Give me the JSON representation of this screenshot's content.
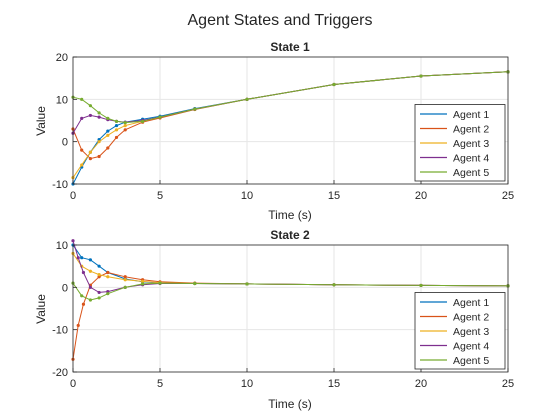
{
  "figure": {
    "title": "Agent States and Triggers"
  },
  "colors": [
    "#0072BD",
    "#D95319",
    "#EDB120",
    "#7E2F8E",
    "#77AC30"
  ],
  "chart_data": [
    {
      "type": "line",
      "title": "State 1",
      "xlabel": "Time (s)",
      "ylabel": "Value",
      "xlim": [
        0,
        25
      ],
      "ylim": [
        -10,
        20
      ],
      "xticks": [
        0,
        5,
        10,
        15,
        20,
        25
      ],
      "yticks": [
        -10,
        0,
        10,
        20
      ],
      "grid": true,
      "legend_position": "bottom-right",
      "series": [
        {
          "name": "Agent 1",
          "x": [
            0,
            0.5,
            1,
            1.5,
            2,
            2.5,
            3,
            4,
            5,
            7,
            10,
            15,
            20,
            25
          ],
          "y": [
            -10,
            -6,
            -2.5,
            0.5,
            2.5,
            3.8,
            4.6,
            5.3,
            6,
            7.8,
            10,
            13.5,
            15.5,
            16.5
          ]
        },
        {
          "name": "Agent 2",
          "x": [
            0,
            0.5,
            1,
            1.5,
            2,
            2.5,
            3,
            4,
            5,
            7,
            10,
            15,
            20,
            25
          ],
          "y": [
            3,
            -2,
            -4,
            -3.5,
            -1.5,
            1,
            2.8,
            4.6,
            5.6,
            7.6,
            10,
            13.5,
            15.5,
            16.5
          ]
        },
        {
          "name": "Agent 3",
          "x": [
            0,
            0.5,
            1,
            1.5,
            2,
            2.5,
            3,
            4,
            5,
            7,
            10,
            15,
            20,
            25
          ],
          "y": [
            -8.5,
            -5.5,
            -2.5,
            0,
            1.5,
            2.8,
            3.8,
            4.8,
            5.8,
            7.7,
            10,
            13.5,
            15.5,
            16.5
          ]
        },
        {
          "name": "Agent 4",
          "x": [
            0,
            0.5,
            1,
            1.5,
            2,
            2.5,
            3,
            4,
            5,
            7,
            10,
            15,
            20,
            25
          ],
          "y": [
            2,
            5.5,
            6.2,
            5.8,
            5.2,
            4.8,
            4.6,
            5,
            5.8,
            7.7,
            10,
            13.5,
            15.5,
            16.5
          ]
        },
        {
          "name": "Agent 5",
          "x": [
            0,
            0.5,
            1,
            1.5,
            2,
            2.5,
            3,
            4,
            5,
            7,
            10,
            15,
            20,
            25
          ],
          "y": [
            10.5,
            10,
            8.5,
            6.8,
            5.5,
            4.8,
            4.5,
            4.8,
            5.8,
            7.7,
            10,
            13.5,
            15.5,
            16.5
          ]
        }
      ]
    },
    {
      "type": "line",
      "title": "State 2",
      "xlabel": "Time (s)",
      "ylabel": "Value",
      "xlim": [
        0,
        25
      ],
      "ylim": [
        -20,
        10
      ],
      "xticks": [
        0,
        5,
        10,
        15,
        20,
        25
      ],
      "yticks": [
        -20,
        -10,
        0,
        10
      ],
      "grid": true,
      "legend_position": "bottom-right",
      "series": [
        {
          "name": "Agent 1",
          "x": [
            0,
            0.5,
            1,
            1.5,
            2,
            3,
            4,
            5,
            7,
            10,
            15,
            20,
            25
          ],
          "y": [
            10,
            7,
            6.5,
            5,
            3.5,
            2,
            1.3,
            1,
            0.9,
            0.8,
            0.6,
            0.45,
            0.35
          ]
        },
        {
          "name": "Agent 2",
          "x": [
            0,
            0.3,
            0.6,
            1,
            1.5,
            2,
            3,
            4,
            5,
            7,
            10,
            15,
            20,
            25
          ],
          "y": [
            -17,
            -9,
            -4,
            0.5,
            2.5,
            3.5,
            2.5,
            1.8,
            1.3,
            1,
            0.8,
            0.6,
            0.45,
            0.35
          ]
        },
        {
          "name": "Agent 3",
          "x": [
            0,
            0.5,
            1,
            1.5,
            2,
            3,
            4,
            5,
            7,
            10,
            15,
            20,
            25
          ],
          "y": [
            8,
            5,
            3.8,
            3,
            2.5,
            1.8,
            1.4,
            1.1,
            0.9,
            0.8,
            0.6,
            0.45,
            0.35
          ]
        },
        {
          "name": "Agent 4",
          "x": [
            0,
            0.3,
            0.6,
            1,
            1.5,
            2,
            3,
            4,
            5,
            7,
            10,
            15,
            20,
            25
          ],
          "y": [
            11,
            7,
            3.5,
            0,
            -1.2,
            -1,
            0,
            0.6,
            0.9,
            0.9,
            0.8,
            0.6,
            0.45,
            0.35
          ]
        },
        {
          "name": "Agent 5",
          "x": [
            0,
            0.5,
            1,
            1.5,
            2,
            3,
            4,
            5,
            7,
            10,
            15,
            20,
            25
          ],
          "y": [
            1,
            -2,
            -3,
            -2.5,
            -1.5,
            0,
            0.8,
            1,
            0.9,
            0.8,
            0.6,
            0.45,
            0.35
          ]
        }
      ]
    }
  ]
}
